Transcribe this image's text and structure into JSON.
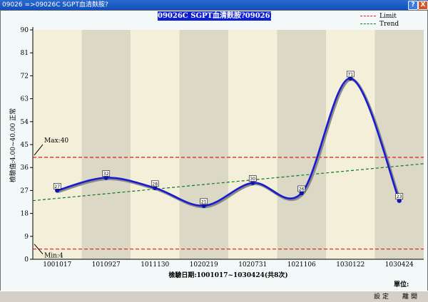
{
  "window": {
    "title": "09026 =>09026C SGPT血清麩胺?",
    "help_label": "?",
    "close_label": "X"
  },
  "chart_data": {
    "type": "line",
    "title": "09026C SGPT血清麩胺?09026)",
    "categories": [
      "1001017",
      "1010927",
      "1011130",
      "1020219",
      "1020731",
      "1021106",
      "1030122",
      "1030424"
    ],
    "values": [
      27,
      32,
      28,
      21,
      30,
      26,
      71,
      23
    ],
    "ylim": [
      0,
      90
    ],
    "yticks": [
      0,
      9,
      18,
      27,
      36,
      45,
      54,
      63,
      72,
      81,
      90
    ],
    "ylabel": "檢驗值:4.00~40.00 正常",
    "xlabel": "檢驗日期:1001017~1030424(共8次)",
    "grid": false,
    "legend_position": "top-right",
    "legend": {
      "limit": "Limit",
      "trend": "Trend"
    },
    "limits": {
      "max": 40,
      "min": 4,
      "max_label": "Max:40",
      "min_label": "Min:4"
    },
    "trend": {
      "start": 23,
      "end": 37.5
    },
    "unit_label": "單位:",
    "colors": {
      "series": "#1a1ad0",
      "series_shadow": "#8a8a8a",
      "point": "#0a1ab0",
      "limit": "#e8141c",
      "trend": "#0a7a1a",
      "band_light": "#f3efd8",
      "band_dark": "#dbd8c6",
      "title_bg": "#0f1fd2"
    }
  },
  "footer": {
    "settings_label": "設定",
    "leave_label": "離開"
  }
}
